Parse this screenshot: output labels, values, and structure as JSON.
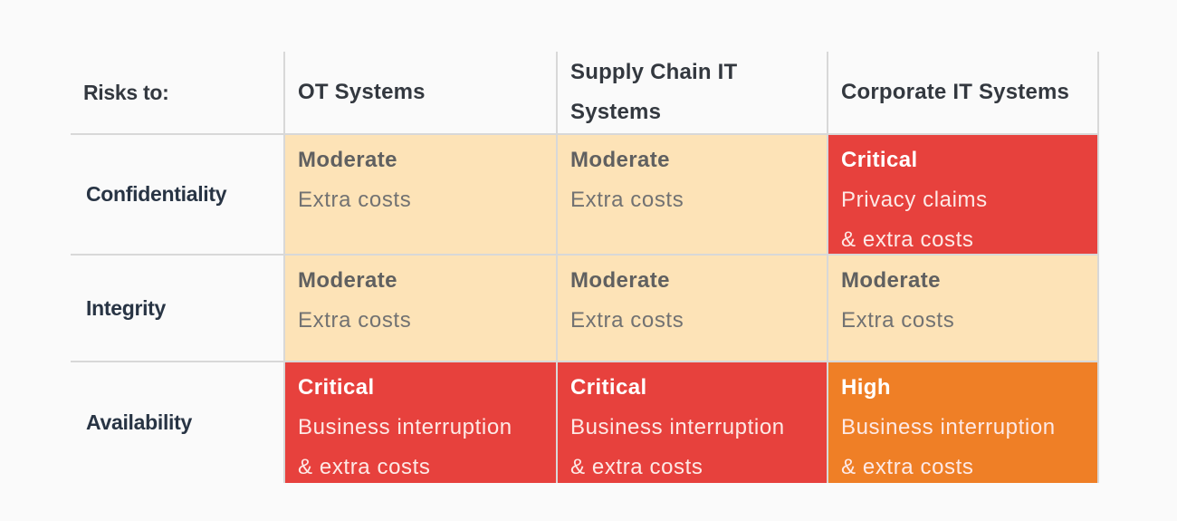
{
  "table": {
    "corner_label": "Risks to:",
    "columns": [
      "OT Systems",
      "Supply Chain IT\nSystems",
      "Corporate IT Systems"
    ],
    "rows": [
      {
        "label": "Confidentiality",
        "cells": [
          {
            "severity": "moderate",
            "level": "Moderate",
            "impact": "Extra costs"
          },
          {
            "severity": "moderate",
            "level": "Moderate",
            "impact": "Extra costs"
          },
          {
            "severity": "critical",
            "level": "Critical",
            "impact": "Privacy claims\n& extra costs"
          }
        ]
      },
      {
        "label": "Integrity",
        "cells": [
          {
            "severity": "moderate",
            "level": "Moderate",
            "impact": "Extra costs"
          },
          {
            "severity": "moderate",
            "level": "Moderate",
            "impact": "Extra costs"
          },
          {
            "severity": "moderate",
            "level": "Moderate",
            "impact": "Extra costs"
          }
        ]
      },
      {
        "label": "Availability",
        "cells": [
          {
            "severity": "critical",
            "level": "Critical",
            "impact": "Business interruption\n& extra costs"
          },
          {
            "severity": "critical",
            "level": "Critical",
            "impact": "Business interruption\n& extra costs"
          },
          {
            "severity": "high",
            "level": "High",
            "impact": "Business interruption\n& extra costs"
          }
        ]
      }
    ]
  },
  "colors": {
    "moderate": "#fde3b7",
    "critical": "#e7413d",
    "high": "#ef7f26",
    "grid": "#d8d8d8",
    "header_text": "#33383f"
  }
}
